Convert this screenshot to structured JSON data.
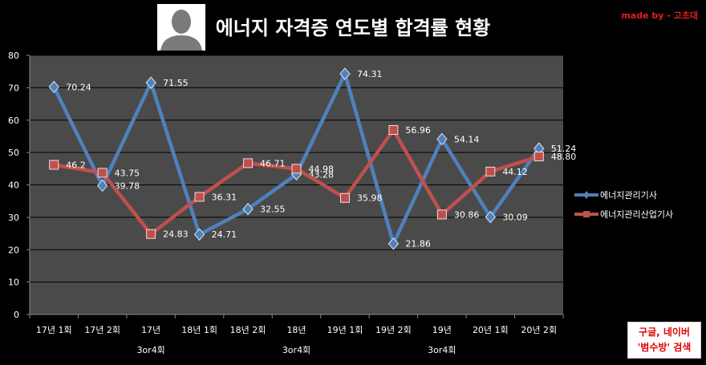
{
  "title": "에너지 자격증 연도별 합격률 현황",
  "credit": "made by - 고초대",
  "search_note": {
    "line1": "구글, 네이버",
    "line2": "'범수방' 검색"
  },
  "icon": "person-silhouette-icon",
  "colors": {
    "background": "#000000",
    "plot_area": "#4a4a4a",
    "gridline": "#000000",
    "series1": "#4f81bd",
    "series2": "#c0504d",
    "credit": "#e02020"
  },
  "chart_data": {
    "type": "line",
    "categories": [
      "17년 1회",
      "17년 2회",
      "17년 3or4회",
      "18년 1회",
      "18년 2회",
      "18년 3or4회",
      "19년 1회",
      "19년 2회",
      "19년 3or4회",
      "20년 1회",
      "20년 2회"
    ],
    "category_ticks": [
      [
        "17년 1회"
      ],
      [
        "17년 2회"
      ],
      [
        "17년",
        "3or4회"
      ],
      [
        "18년 1회"
      ],
      [
        "18년 2회"
      ],
      [
        "18년",
        "3or4회"
      ],
      [
        "19년 1회"
      ],
      [
        "19년 2회"
      ],
      [
        "19년",
        "3or4회"
      ],
      [
        "20년 1회"
      ],
      [
        "20년 2회"
      ]
    ],
    "series": [
      {
        "name": "에너지관리기사",
        "color": "#4f81bd",
        "marker": "diamond",
        "values": [
          70.24,
          39.78,
          71.55,
          24.71,
          32.55,
          43.28,
          74.31,
          21.86,
          54.14,
          30.09,
          51.24
        ],
        "labels": [
          "70.24",
          "39.78",
          "71.55",
          "24.71",
          "32.55",
          "43.28",
          "74.31",
          "21.86",
          "54.14",
          "30.09",
          "51.24"
        ]
      },
      {
        "name": "에너지관리산업기사",
        "color": "#c0504d",
        "marker": "square",
        "values": [
          46.2,
          43.75,
          24.83,
          36.31,
          46.71,
          44.98,
          35.98,
          56.96,
          30.86,
          44.12,
          48.8
        ],
        "labels": [
          "46.2",
          "43.75",
          "24.83",
          "36.31",
          "46.71",
          "44.98",
          "35.98",
          "56.96",
          "30.86",
          "44.12",
          "48.80"
        ]
      }
    ],
    "yticks": [
      "0",
      "10",
      "20",
      "30",
      "40",
      "50",
      "60",
      "70",
      "80"
    ],
    "ylim": [
      0,
      80
    ],
    "grid": true,
    "legend_position": "right"
  }
}
